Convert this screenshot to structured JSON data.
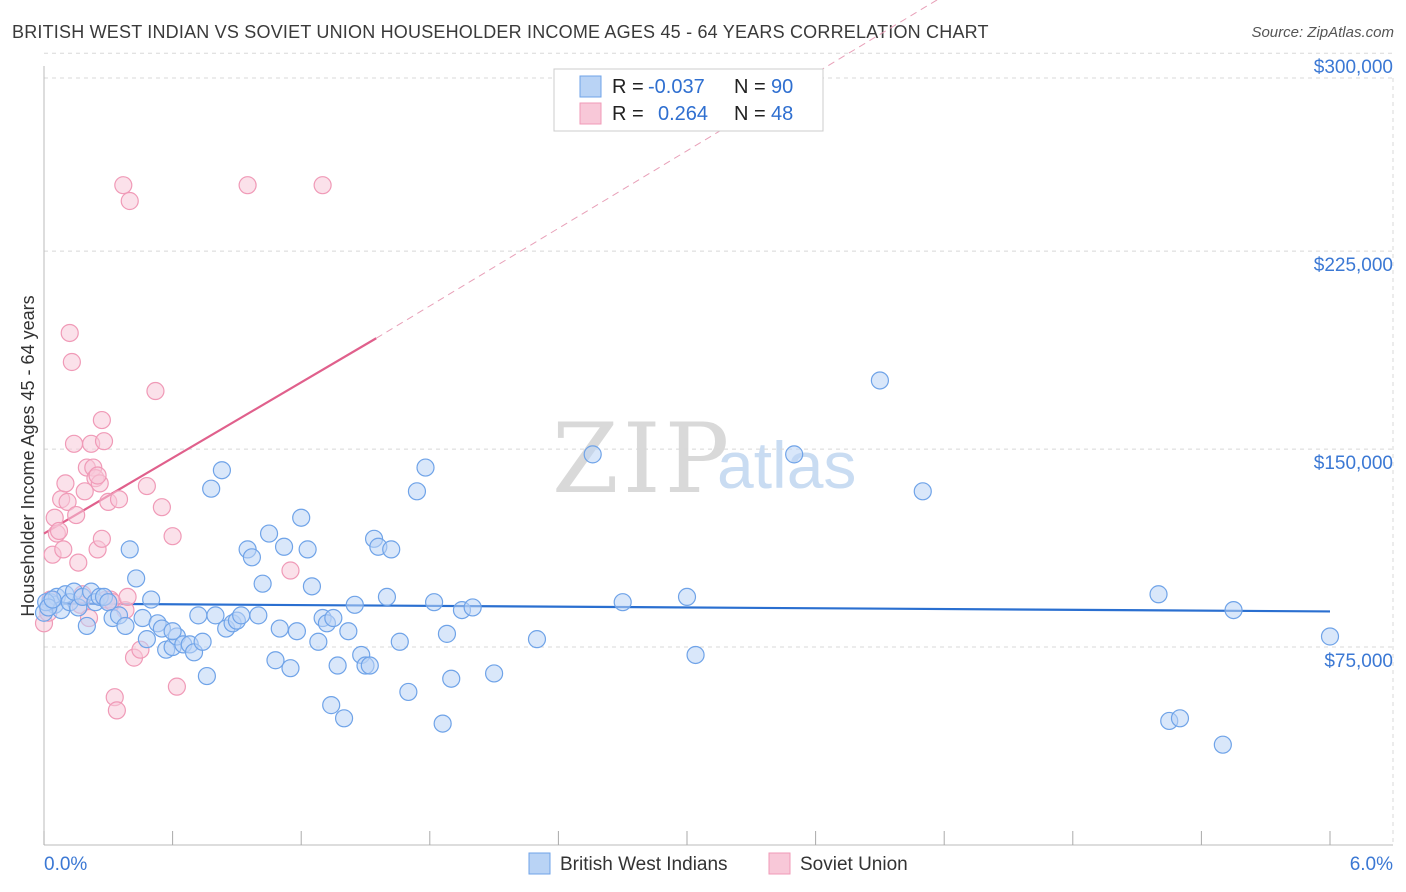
{
  "title": "BRITISH WEST INDIAN VS SOVIET UNION HOUSEHOLDER INCOME AGES 45 - 64 YEARS CORRELATION CHART",
  "source": "Source: ZipAtlas.com",
  "watermark": {
    "zip": "ZIP",
    "atlas": "atlas"
  },
  "colors": {
    "blue": "#6fa3e8",
    "blue_fill": "#b9d3f5",
    "blue_line": "#2a6fd0",
    "pink": "#f09ab7",
    "pink_fill": "#f8c8d8",
    "pink_line": "#e0608c",
    "grid": "#d8d8d8",
    "tick_label": "#3b78d4"
  },
  "legend": {
    "rows": [
      {
        "r_label": "R =",
        "r_value": "-0.037",
        "n_label": "N =",
        "n_value": "90"
      },
      {
        "r_label": "R =",
        "r_value": "0.264",
        "n_label": "N =",
        "n_value": "48"
      }
    ]
  },
  "bottom_legend": [
    "British West Indians",
    "Soviet Union"
  ],
  "chart_data": {
    "type": "scatter",
    "title": "BRITISH WEST INDIAN VS SOVIET UNION HOUSEHOLDER INCOME AGES 45 - 64 YEARS CORRELATION CHART",
    "xlabel": "",
    "ylabel": "Householder Income Ages 45 - 64 years",
    "xlim": [
      0,
      6.0
    ],
    "ylim": [
      0,
      305000
    ],
    "x_tick_labels": [
      "0.0%",
      "6.0%"
    ],
    "y_ticks": [
      75000,
      150000,
      225000,
      300000
    ],
    "y_tick_labels": [
      "$75,000",
      "$150,000",
      "$225,000",
      "$300,000"
    ],
    "series": [
      {
        "name": "British West Indians",
        "r": -0.037,
        "n": 90,
        "trend": {
          "x0": 0.0,
          "y0": 91500,
          "x1": 6.0,
          "y1": 88500
        },
        "points": [
          [
            0.03,
            92000
          ],
          [
            0.05,
            91000
          ],
          [
            0.06,
            94000
          ],
          [
            0.08,
            89000
          ],
          [
            0.1,
            95000
          ],
          [
            0.12,
            92000
          ],
          [
            0.14,
            96000
          ],
          [
            0.16,
            90000
          ],
          [
            0.18,
            94000
          ],
          [
            0.2,
            83000
          ],
          [
            0.22,
            96000
          ],
          [
            0.24,
            92000
          ],
          [
            0.26,
            94000
          ],
          [
            0.28,
            94000
          ],
          [
            0.3,
            92000
          ],
          [
            0.32,
            86000
          ],
          [
            0.35,
            87000
          ],
          [
            0.38,
            83000
          ],
          [
            0.4,
            112000
          ],
          [
            0.43,
            101000
          ],
          [
            0.46,
            86000
          ],
          [
            0.48,
            78000
          ],
          [
            0.5,
            93000
          ],
          [
            0.53,
            84000
          ],
          [
            0.55,
            82000
          ],
          [
            0.57,
            74000
          ],
          [
            0.6,
            75000
          ],
          [
            0.62,
            79000
          ],
          [
            0.65,
            76000
          ],
          [
            0.68,
            76000
          ],
          [
            0.7,
            73000
          ],
          [
            0.72,
            87000
          ],
          [
            0.74,
            77000
          ],
          [
            0.76,
            64000
          ],
          [
            0.78,
            135000
          ],
          [
            0.8,
            87000
          ],
          [
            0.83,
            142000
          ],
          [
            0.85,
            82000
          ],
          [
            0.88,
            84000
          ],
          [
            0.9,
            85000
          ],
          [
            0.92,
            87000
          ],
          [
            0.95,
            112000
          ],
          [
            0.97,
            109000
          ],
          [
            1.0,
            87000
          ],
          [
            1.02,
            99000
          ],
          [
            1.05,
            118000
          ],
          [
            1.08,
            70000
          ],
          [
            1.1,
            82000
          ],
          [
            1.12,
            113000
          ],
          [
            1.15,
            67000
          ],
          [
            1.18,
            81000
          ],
          [
            1.2,
            124000
          ],
          [
            1.23,
            112000
          ],
          [
            1.25,
            98000
          ],
          [
            1.28,
            77000
          ],
          [
            1.3,
            86000
          ],
          [
            1.32,
            84000
          ],
          [
            1.34,
            53000
          ],
          [
            1.37,
            68000
          ],
          [
            1.4,
            48000
          ],
          [
            1.42,
            81000
          ],
          [
            1.45,
            91000
          ],
          [
            1.48,
            72000
          ],
          [
            1.5,
            68000
          ],
          [
            1.52,
            68000
          ],
          [
            1.54,
            116000
          ],
          [
            1.56,
            113000
          ],
          [
            1.6,
            94000
          ],
          [
            1.62,
            112000
          ],
          [
            1.66,
            77000
          ],
          [
            1.7,
            58000
          ],
          [
            1.74,
            134000
          ],
          [
            1.78,
            143000
          ],
          [
            1.82,
            92000
          ],
          [
            1.86,
            46000
          ],
          [
            1.88,
            80000
          ],
          [
            1.9,
            63000
          ],
          [
            1.95,
            89000
          ],
          [
            2.0,
            90000
          ],
          [
            2.1,
            65000
          ],
          [
            2.3,
            78000
          ],
          [
            2.56,
            148000
          ],
          [
            2.7,
            92000
          ],
          [
            3.0,
            94000
          ],
          [
            3.04,
            72000
          ],
          [
            3.5,
            148000
          ],
          [
            3.9,
            176000
          ],
          [
            4.1,
            134000
          ],
          [
            5.2,
            95000
          ],
          [
            5.25,
            47000
          ]
        ],
        "extra_points": [
          [
            5.3,
            48000
          ],
          [
            5.5,
            38000
          ],
          [
            5.55,
            89000
          ],
          [
            6.0,
            79000
          ],
          [
            0.0,
            88000
          ],
          [
            0.01,
            92000
          ],
          [
            0.02,
            90000
          ],
          [
            0.04,
            93000
          ],
          [
            0.6,
            81000
          ],
          [
            1.35,
            86000
          ]
        ]
      },
      {
        "name": "Soviet Union",
        "r": 0.264,
        "n": 48,
        "trend_solid": {
          "x0": 0.0,
          "y0": 118000,
          "x1": 1.55,
          "y1": 192000
        },
        "trend_dashed": {
          "x0": 1.55,
          "y0": 192000,
          "x1": 6.0,
          "y1": 410000
        },
        "points": [
          [
            0.0,
            84000
          ],
          [
            0.02,
            88000
          ],
          [
            0.03,
            93000
          ],
          [
            0.04,
            110000
          ],
          [
            0.05,
            124000
          ],
          [
            0.06,
            118000
          ],
          [
            0.07,
            119000
          ],
          [
            0.08,
            131000
          ],
          [
            0.09,
            112000
          ],
          [
            0.1,
            137000
          ],
          [
            0.11,
            130000
          ],
          [
            0.12,
            194000
          ],
          [
            0.13,
            183000
          ],
          [
            0.14,
            152000
          ],
          [
            0.15,
            125000
          ],
          [
            0.16,
            107000
          ],
          [
            0.17,
            91000
          ],
          [
            0.18,
            95000
          ],
          [
            0.19,
            134000
          ],
          [
            0.2,
            143000
          ],
          [
            0.21,
            86000
          ],
          [
            0.22,
            152000
          ],
          [
            0.23,
            143000
          ],
          [
            0.24,
            139000
          ],
          [
            0.25,
            112000
          ],
          [
            0.26,
            137000
          ],
          [
            0.27,
            161000
          ],
          [
            0.28,
            153000
          ],
          [
            0.29,
            93000
          ],
          [
            0.3,
            130000
          ],
          [
            0.31,
            93000
          ],
          [
            0.32,
            92000
          ],
          [
            0.33,
            56000
          ],
          [
            0.34,
            51000
          ],
          [
            0.35,
            131000
          ],
          [
            0.37,
            250000
          ],
          [
            0.38,
            89000
          ],
          [
            0.39,
            94000
          ],
          [
            0.4,
            244000
          ],
          [
            0.42,
            71000
          ],
          [
            0.45,
            74000
          ],
          [
            0.48,
            136000
          ],
          [
            0.52,
            172000
          ],
          [
            0.55,
            128000
          ],
          [
            0.6,
            117000
          ],
          [
            0.62,
            60000
          ],
          [
            0.95,
            250000
          ],
          [
            1.15,
            104000
          ]
        ],
        "extra_points": [
          [
            1.3,
            250000
          ],
          [
            0.25,
            140000
          ],
          [
            0.27,
            116000
          ]
        ]
      }
    ]
  }
}
